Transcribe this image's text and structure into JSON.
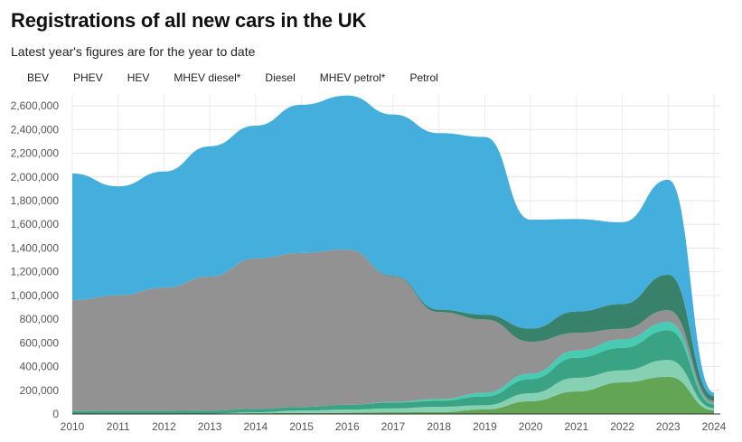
{
  "title": "Registrations of all new cars in the UK",
  "subtitle": "Latest year's figures are for the year to date",
  "colors": {
    "BEV": "#5aa04b",
    "PHEV": "#7fcfb0",
    "HEV": "#2e9e7c",
    "MHEV diesel*": "#3dc9b0",
    "Diesel": "#8c8c8c",
    "MHEV petrol*": "#2d7a62",
    "Petrol": "#3aabdb"
  },
  "chart_data": {
    "type": "area",
    "stacked": true,
    "title": "Registrations of all new cars in the UK",
    "subtitle": "Latest year's figures are for the year to date",
    "xlabel": "",
    "ylabel": "",
    "x": [
      "2010",
      "2011",
      "2012",
      "2013",
      "2014",
      "2015",
      "2016",
      "2017",
      "2018",
      "2019",
      "2020",
      "2021",
      "2022",
      "2023",
      "2024"
    ],
    "ylim": [
      0,
      2700000
    ],
    "yticks": [
      "0",
      "200,000",
      "400,000",
      "600,000",
      "800,000",
      "1,000,000",
      "1,200,000",
      "1,400,000",
      "1,600,000",
      "1,800,000",
      "2,000,000",
      "2,200,000",
      "2,400,000",
      "2,600,000"
    ],
    "grid": true,
    "legend_position": "top",
    "series": [
      {
        "name": "BEV",
        "values": [
          0,
          1000,
          2000,
          3000,
          7000,
          9000,
          10000,
          14000,
          16000,
          38000,
          108000,
          190000,
          267000,
          315000,
          30000
        ]
      },
      {
        "name": "PHEV",
        "values": [
          0,
          0,
          0,
          1000,
          8000,
          20000,
          27000,
          33000,
          45000,
          35000,
          67000,
          115000,
          101000,
          141000,
          20000
        ]
      },
      {
        "name": "HEV",
        "values": [
          25000,
          25000,
          24000,
          25000,
          28000,
          30000,
          40000,
          50000,
          50000,
          75000,
          120000,
          170000,
          190000,
          250000,
          30000
        ]
      },
      {
        "name": "MHEV diesel*",
        "values": [
          0,
          0,
          0,
          0,
          0,
          0,
          0,
          5000,
          15000,
          30000,
          45000,
          60000,
          70000,
          70000,
          10000
        ]
      },
      {
        "name": "Diesel",
        "values": [
          935000,
          975000,
          1040000,
          1130000,
          1270000,
          1300000,
          1310000,
          1060000,
          734000,
          620000,
          270000,
          150000,
          90000,
          100000,
          20000
        ]
      },
      {
        "name": "MHEV petrol*",
        "values": [
          0,
          0,
          0,
          0,
          0,
          0,
          0,
          5000,
          20000,
          40000,
          110000,
          180000,
          210000,
          300000,
          40000
        ]
      },
      {
        "name": "Petrol",
        "values": [
          1070000,
          920000,
          980000,
          1100000,
          1120000,
          1250000,
          1300000,
          1360000,
          1490000,
          1500000,
          920000,
          780000,
          690000,
          800000,
          30000
        ]
      }
    ]
  }
}
